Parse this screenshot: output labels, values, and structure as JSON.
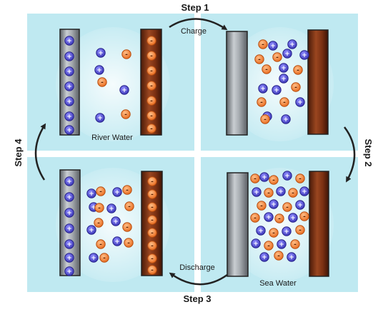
{
  "labels": {
    "step1": "Step 1",
    "step2": "Step 2",
    "step3": "Step 3",
    "step4": "Step 4",
    "charge": "Charge",
    "discharge": "Discharge",
    "river_water": "River Water",
    "sea_water": "Sea Water"
  },
  "ion_symbols": {
    "cation": "+",
    "anion": "-"
  },
  "colors": {
    "background": "#bfe9f1",
    "divider": "#ffffff",
    "anion_fill": "#ef7d2d",
    "cation_fill": "#4c47c8",
    "gray_electrode": "#8f9499",
    "brown_electrode": "#7a2f12",
    "arrow": "#222222"
  },
  "panels": [
    {
      "name": "panel-step1-river-water-charged",
      "gray_electrode_cations": 7,
      "brown_electrode_anions": 7,
      "free_anions": 4,
      "free_cations": 3
    },
    {
      "name": "panel-step2-sea-water",
      "gray_electrode_cations": 0,
      "brown_electrode_anions": 0,
      "free_anions": 10,
      "free_cations": 10
    },
    {
      "name": "panel-step3-sea-water-discharged",
      "gray_electrode_cations": 0,
      "brown_electrode_anions": 0,
      "free_anions": 15,
      "free_cations": 15
    },
    {
      "name": "panel-step4-river-water",
      "gray_electrode_cations": 7,
      "brown_electrode_anions": 8,
      "free_anions": 9,
      "free_cations": 8
    }
  ]
}
